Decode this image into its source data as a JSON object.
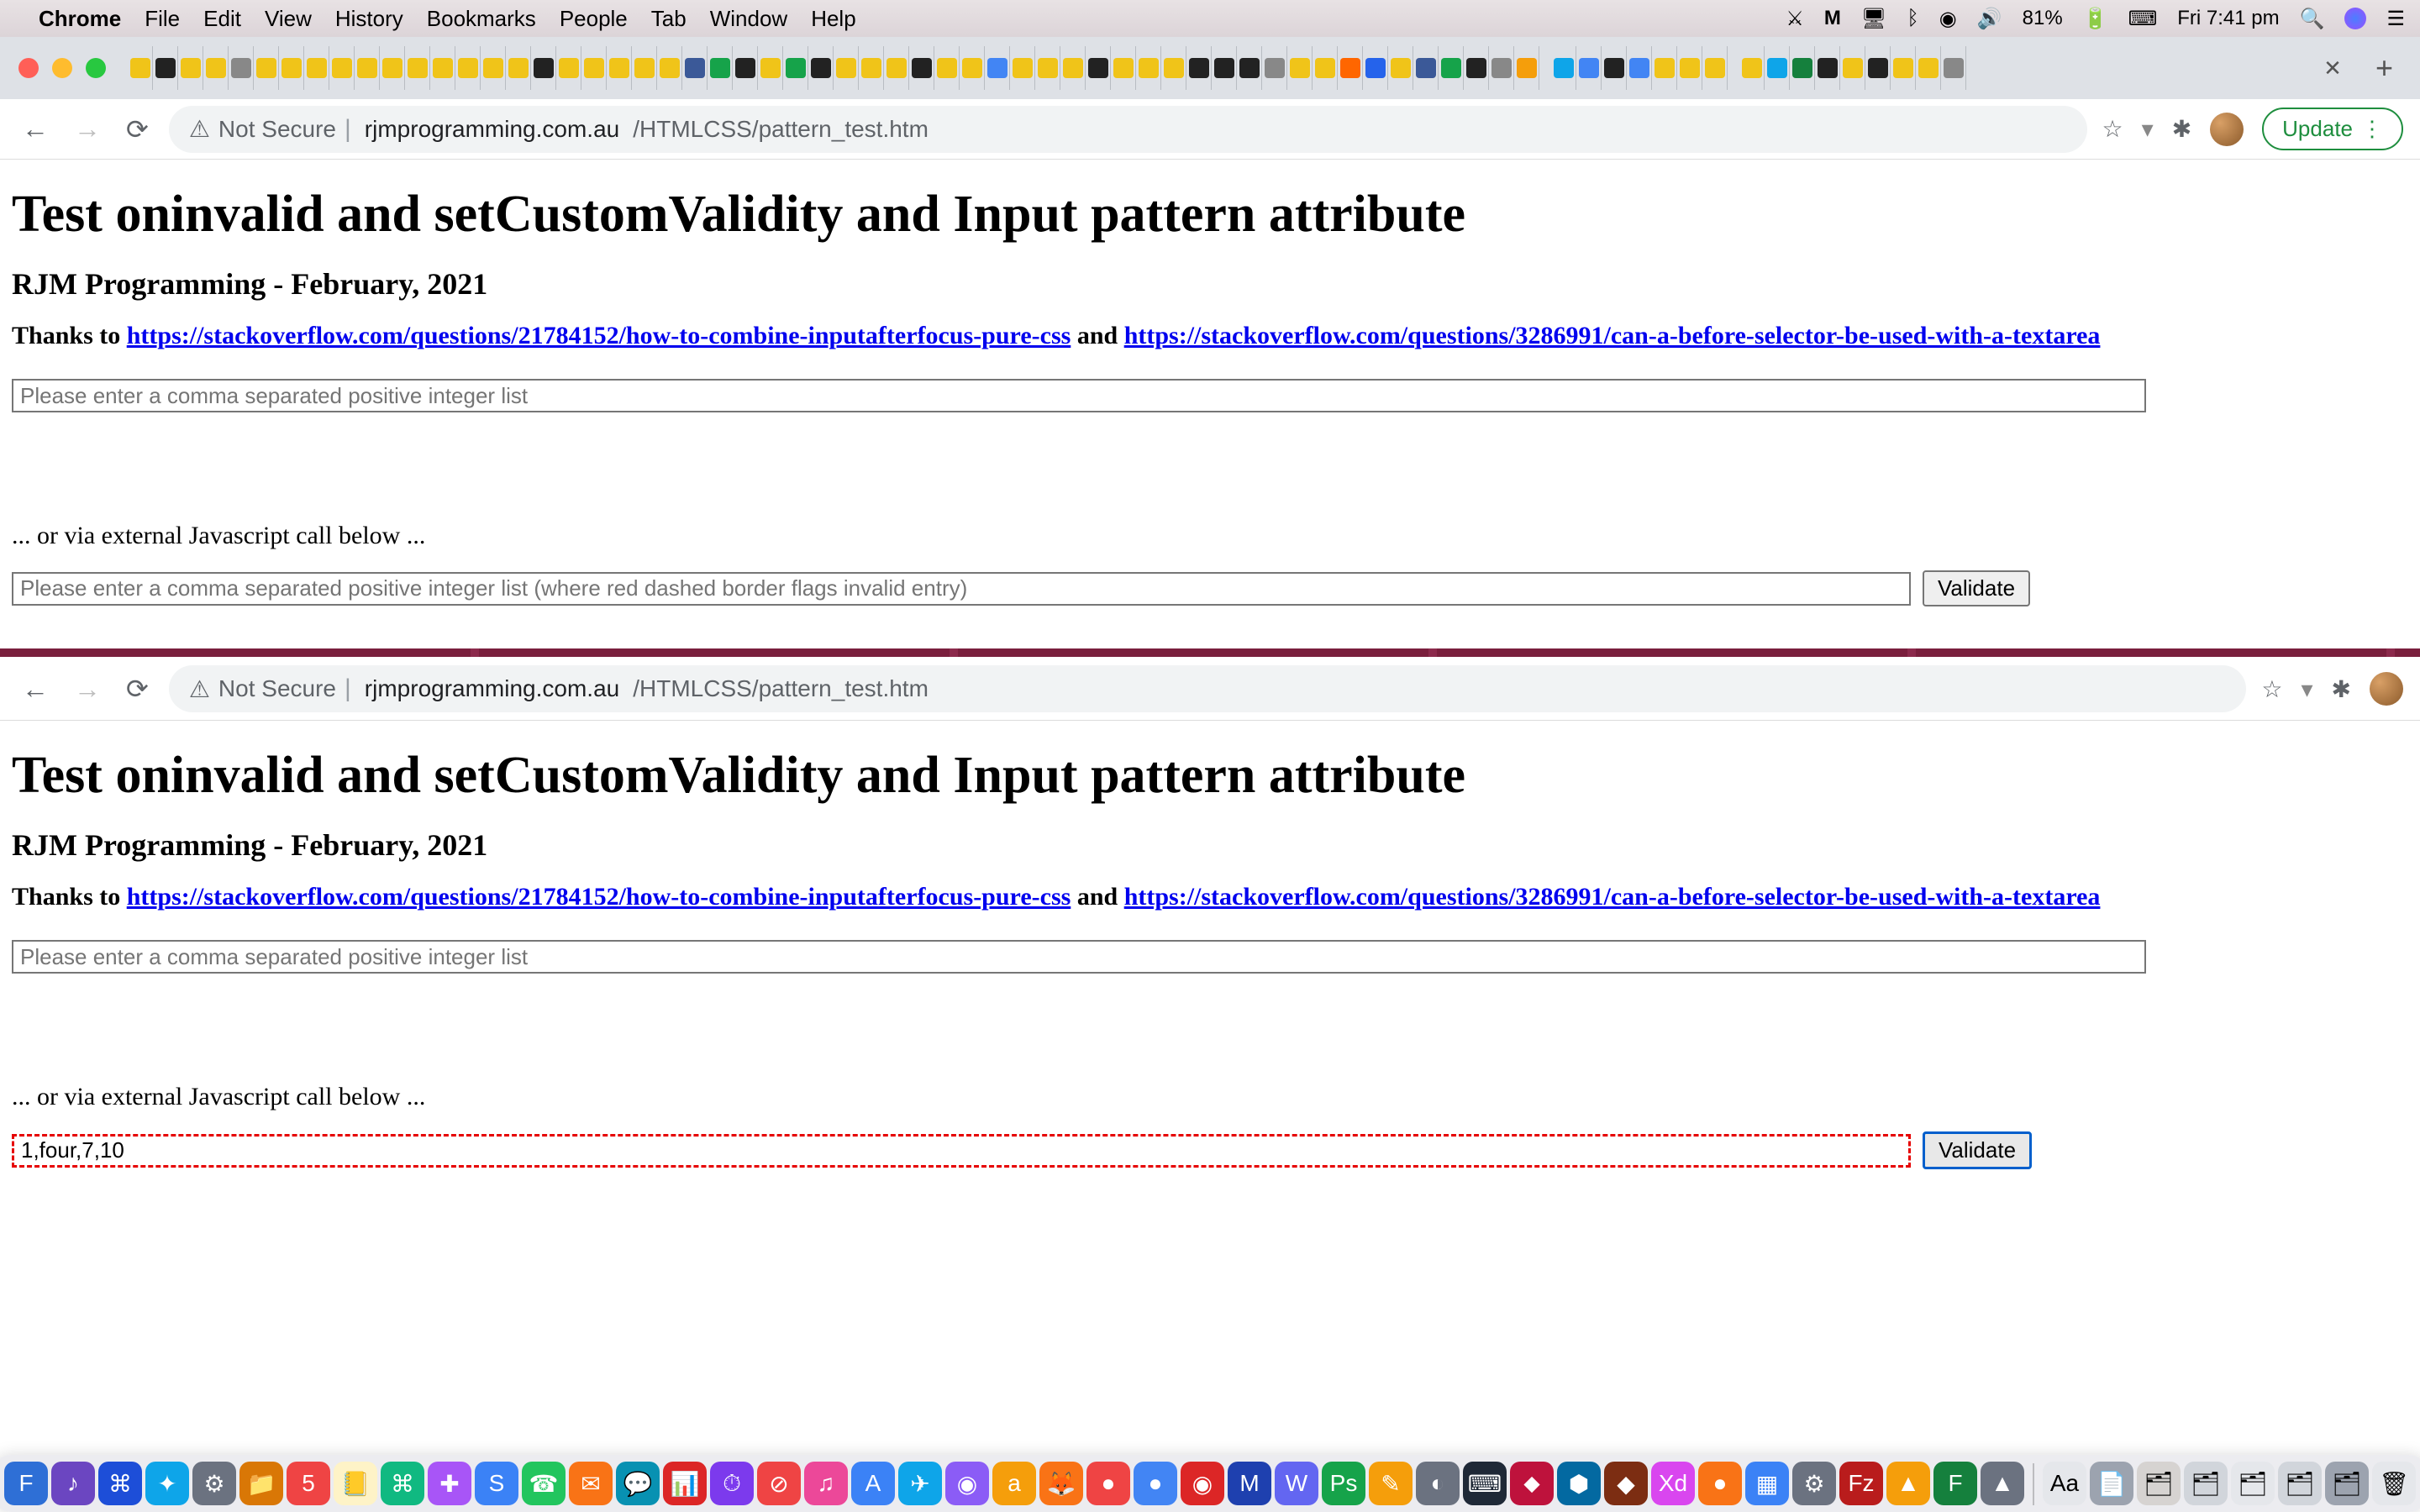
{
  "menubar": {
    "app": "Chrome",
    "items": [
      "File",
      "Edit",
      "View",
      "History",
      "Bookmarks",
      "People",
      "Tab",
      "Window",
      "Help"
    ],
    "battery": "81%",
    "clock": "Fri 7:41 pm"
  },
  "omnibox": {
    "not_secure": "Not Secure",
    "domain": "rjmprogramming.com.au",
    "path": "/HTMLCSS/pattern_test.htm",
    "update": "Update"
  },
  "page": {
    "title": "Test oninvalid and setCustomValidity and Input pattern attribute",
    "subtitle": "RJM Programming - February, 2021",
    "thanks_prefix": "Thanks to ",
    "link1": "https://stackoverflow.com/questions/21784152/how-to-combine-inputafterfocus-pure-css",
    "and": " and ",
    "link2": "https://stackoverflow.com/questions/3286991/can-a-before-selector-be-used-with-a-textarea",
    "input1_placeholder": "Please enter a comma separated positive integer list",
    "or_text": "... or via external Javascript call below ...",
    "input2_placeholder": "Please enter a comma separated positive integer list (where red dashed border flags invalid entry)",
    "validate_label": "Validate",
    "input2_invalid_value": "1,four,7,10"
  },
  "colors": {
    "link": "#0000ee",
    "invalid_border": "#e60000",
    "divider": "#7a1f3d",
    "update_green": "#1e8e3e"
  }
}
